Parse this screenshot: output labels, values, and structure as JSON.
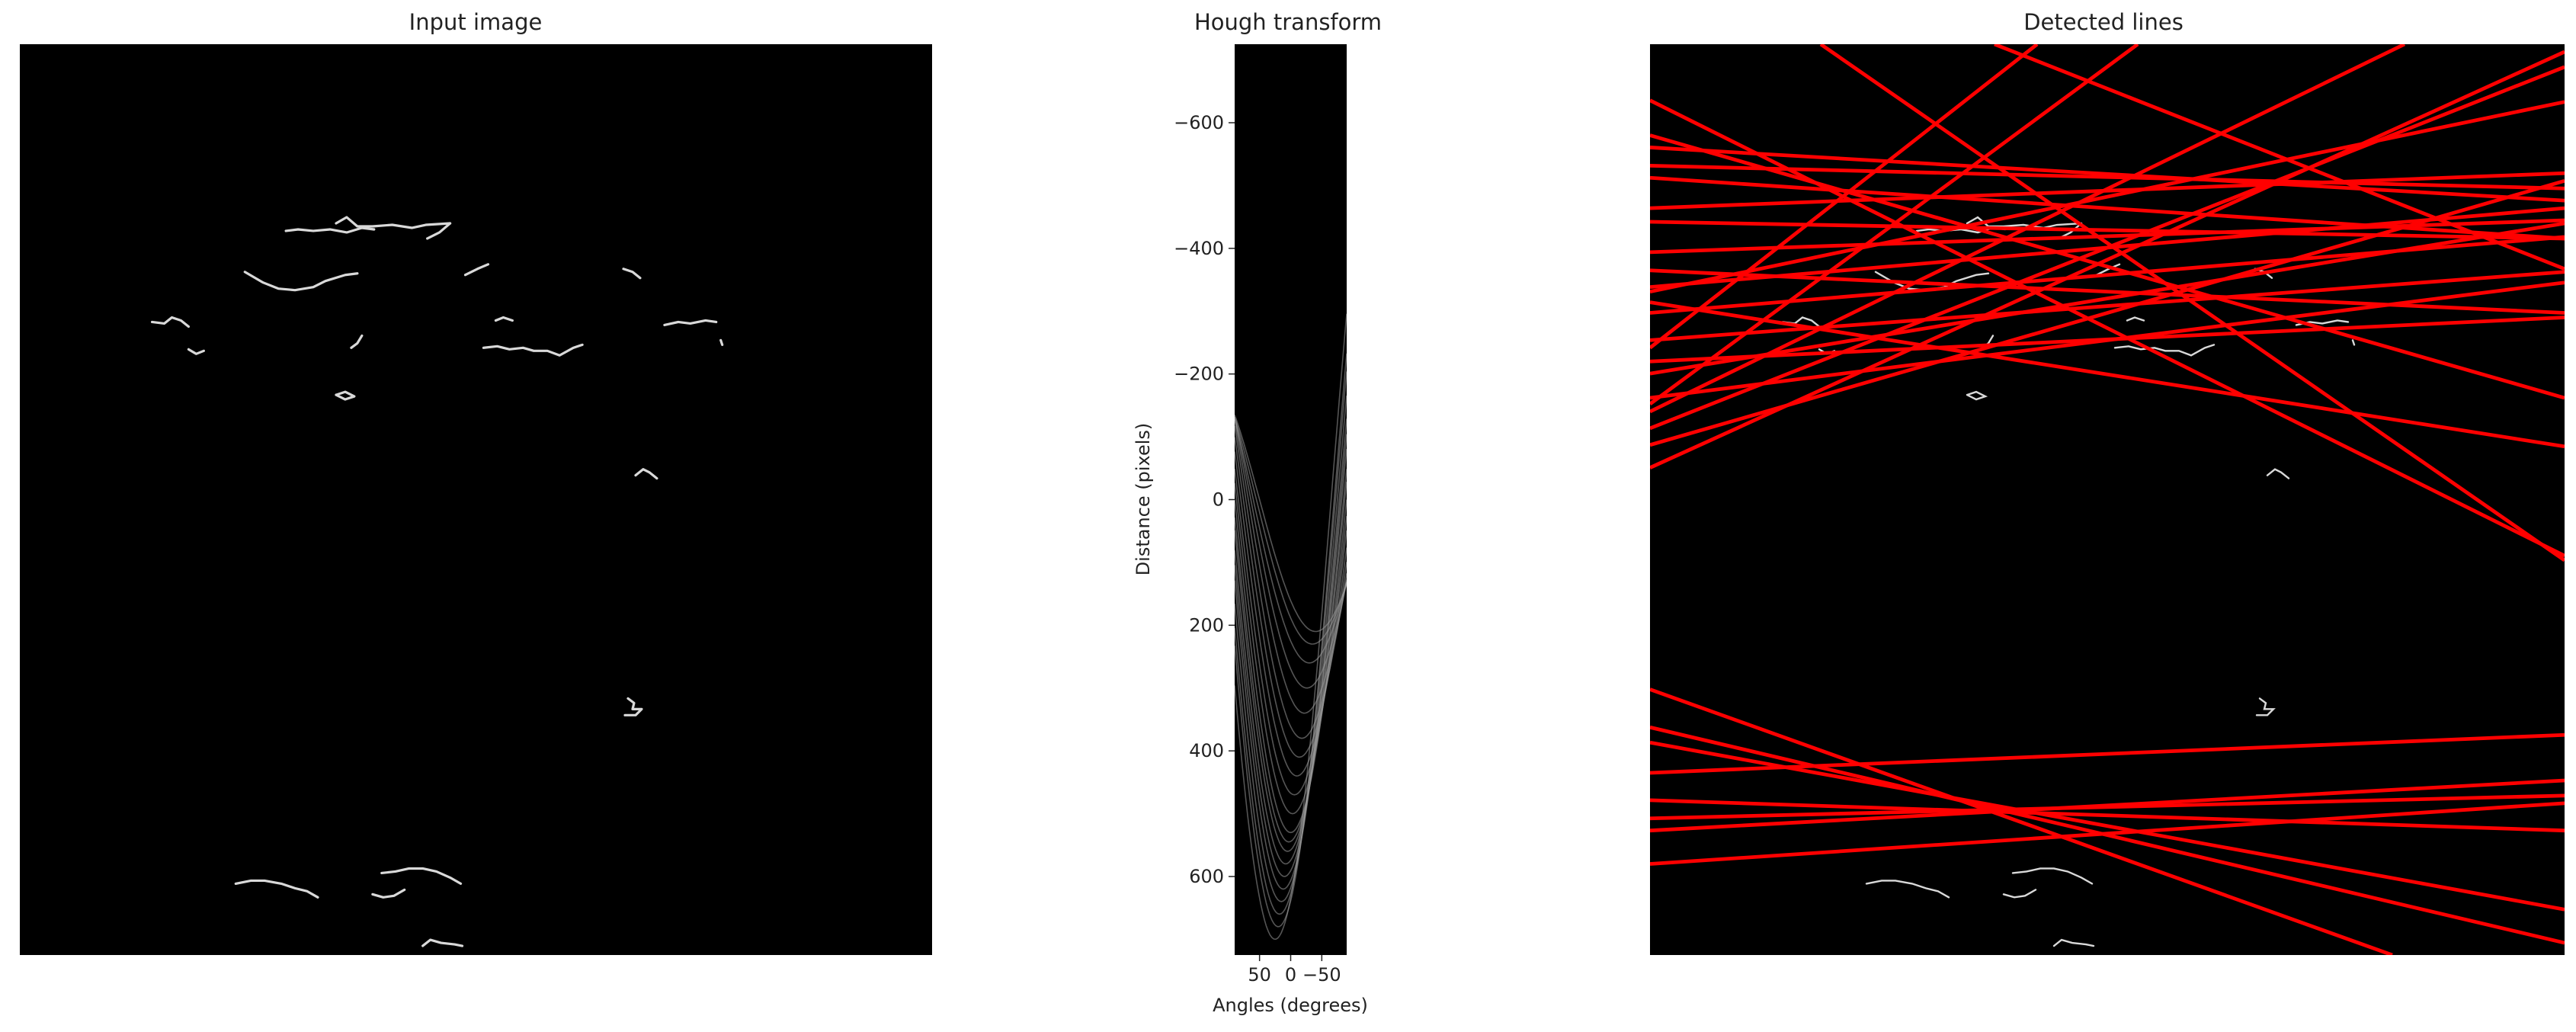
{
  "figure": {
    "panels": [
      {
        "title": "Input image"
      },
      {
        "title": "Hough transform"
      },
      {
        "title": "Detected lines"
      }
    ]
  },
  "chart_data": [
    {
      "type": "image",
      "title": "Input image",
      "description_colors": {
        "background": "#000000",
        "edges": "#d9d9d9"
      },
      "edge_segments": [
        [
          [
            175,
            123
          ],
          [
            183,
            122
          ],
          [
            193,
            123
          ],
          [
            204,
            122
          ],
          [
            215,
            124
          ],
          [
            225,
            121
          ],
          [
            233,
            122
          ]
        ],
        [
          [
            208,
            118
          ],
          [
            215,
            114
          ],
          [
            222,
            120
          ],
          [
            232,
            120
          ],
          [
            245,
            119
          ],
          [
            258,
            121
          ],
          [
            267,
            119
          ],
          [
            283,
            118
          ]
        ],
        [
          [
            268,
            128
          ],
          [
            276,
            124
          ],
          [
            283,
            118
          ]
        ],
        [
          [
            148,
            150
          ],
          [
            160,
            157
          ],
          [
            170,
            161
          ],
          [
            181,
            162
          ],
          [
            193,
            160
          ],
          [
            201,
            156
          ],
          [
            214,
            152
          ],
          [
            222,
            151
          ]
        ],
        [
          [
            293,
            152
          ],
          [
            301,
            148
          ],
          [
            308,
            145
          ]
        ],
        [
          [
            397,
            148
          ],
          [
            403,
            150
          ],
          [
            408,
            154
          ]
        ],
        [
          [
            87,
            183
          ],
          [
            95,
            184
          ],
          [
            100,
            180
          ],
          [
            106,
            182
          ],
          [
            111,
            186
          ]
        ],
        [
          [
            111,
            201
          ],
          [
            116,
            204
          ],
          [
            121,
            202
          ]
        ],
        [
          [
            218,
            200
          ],
          [
            222,
            197
          ],
          [
            225,
            192
          ]
        ],
        [
          [
            313,
            182
          ],
          [
            318,
            180
          ],
          [
            324,
            182
          ]
        ],
        [
          [
            305,
            200
          ],
          [
            314,
            199
          ],
          [
            322,
            201
          ],
          [
            331,
            200
          ],
          [
            338,
            202
          ],
          [
            347,
            202
          ],
          [
            355,
            205
          ],
          [
            364,
            200
          ],
          [
            370,
            198
          ]
        ],
        [
          [
            424,
            185
          ],
          [
            433,
            183
          ],
          [
            441,
            184
          ],
          [
            451,
            182
          ],
          [
            458,
            183
          ]
        ],
        [
          [
            461,
            195
          ],
          [
            462,
            198
          ]
        ],
        [
          [
            208,
            231
          ],
          [
            214,
            229
          ],
          [
            220,
            232
          ],
          [
            214,
            234
          ],
          [
            208,
            231
          ]
        ],
        [
          [
            405,
            284
          ],
          [
            410,
            280
          ],
          [
            414,
            282
          ],
          [
            419,
            286
          ]
        ],
        [
          [
            400,
            431
          ],
          [
            404,
            434
          ],
          [
            403,
            438
          ],
          [
            409,
            438
          ],
          [
            405,
            442
          ],
          [
            398,
            442
          ]
        ],
        [
          [
            142,
            553
          ],
          [
            152,
            551
          ],
          [
            161,
            551
          ],
          [
            172,
            553
          ],
          [
            181,
            556
          ],
          [
            189,
            558
          ],
          [
            196,
            562
          ]
        ],
        [
          [
            238,
            546
          ],
          [
            247,
            545
          ],
          [
            256,
            543
          ],
          [
            265,
            543
          ],
          [
            274,
            545
          ],
          [
            283,
            549
          ],
          [
            290,
            553
          ]
        ],
        [
          [
            232,
            560
          ],
          [
            239,
            562
          ],
          [
            246,
            561
          ],
          [
            253,
            557
          ]
        ],
        [
          [
            265,
            594
          ],
          [
            270,
            590
          ],
          [
            277,
            592
          ],
          [
            286,
            593
          ],
          [
            291,
            594
          ]
        ]
      ]
    },
    {
      "type": "heatmap",
      "title": "Hough transform",
      "xlabel": "Angles (degrees)",
      "ylabel": "Distance (pixels)",
      "x_ticks": [
        50,
        0,
        -50
      ],
      "y_ticks": [
        -600,
        -400,
        -200,
        0,
        200,
        400,
        600
      ],
      "xlim": [
        90,
        -90
      ],
      "ylim": [
        -725,
        725
      ],
      "colormap": "gray",
      "curves": [
        {
          "amp": 700,
          "phase": -25
        },
        {
          "amp": 680,
          "phase": -20
        },
        {
          "amp": 660,
          "phase": -18
        },
        {
          "amp": 640,
          "phase": -15
        },
        {
          "amp": 620,
          "phase": -12
        },
        {
          "amp": 600,
          "phase": -10
        },
        {
          "amp": 580,
          "phase": -8
        },
        {
          "amp": 560,
          "phase": -5
        },
        {
          "amp": 545,
          "phase": -3
        },
        {
          "amp": 530,
          "phase": 0
        },
        {
          "amp": 500,
          "phase": 3
        },
        {
          "amp": 470,
          "phase": 6
        },
        {
          "amp": 440,
          "phase": 10
        },
        {
          "amp": 410,
          "phase": 14
        },
        {
          "amp": 380,
          "phase": 18
        },
        {
          "amp": 340,
          "phase": 22
        },
        {
          "amp": 300,
          "phase": 26
        },
        {
          "amp": 260,
          "phase": 30
        },
        {
          "amp": 230,
          "phase": 35
        },
        {
          "amp": 210,
          "phase": 40
        }
      ]
    },
    {
      "type": "image",
      "title": "Detected lines",
      "description_colors": {
        "background": "#000000",
        "lines": "#ff0000",
        "edges": "#d9d9d9"
      },
      "lines": [
        [
          [
            0,
            68
          ],
          [
            600,
            103
          ]
        ],
        [
          [
            0,
            80
          ],
          [
            600,
            95
          ]
        ],
        [
          [
            0,
            88
          ],
          [
            600,
            128
          ]
        ],
        [
          [
            0,
            108
          ],
          [
            600,
            85
          ]
        ],
        [
          [
            0,
            117
          ],
          [
            600,
            128
          ]
        ],
        [
          [
            0,
            137
          ],
          [
            600,
            116
          ]
        ],
        [
          [
            0,
            149
          ],
          [
            600,
            177
          ]
        ],
        [
          [
            0,
            160
          ],
          [
            600,
            108
          ]
        ],
        [
          [
            0,
            177
          ],
          [
            600,
            127
          ]
        ],
        [
          [
            0,
            195
          ],
          [
            600,
            150
          ]
        ],
        [
          [
            0,
            209
          ],
          [
            600,
            180
          ]
        ],
        [
          [
            0,
            233
          ],
          [
            600,
            157
          ]
        ],
        [
          [
            0,
            253
          ],
          [
            600,
            15
          ]
        ],
        [
          [
            0,
            264
          ],
          [
            600,
            90
          ]
        ],
        [
          [
            0,
            279
          ],
          [
            600,
            5
          ]
        ],
        [
          [
            0,
            60
          ],
          [
            600,
            233
          ]
        ],
        [
          [
            0,
            37
          ],
          [
            600,
            337
          ]
        ],
        [
          [
            112,
            0
          ],
          [
            600,
            340
          ]
        ],
        [
          [
            226,
            0
          ],
          [
            600,
            148
          ]
        ],
        [
          [
            0,
            200
          ],
          [
            254,
            0
          ]
        ],
        [
          [
            0,
            237
          ],
          [
            320,
            0
          ]
        ],
        [
          [
            0,
            242
          ],
          [
            495,
            0
          ]
        ],
        [
          [
            0,
            163
          ],
          [
            600,
            38
          ]
        ],
        [
          [
            0,
            170
          ],
          [
            600,
            265
          ]
        ],
        [
          [
            0,
            217
          ],
          [
            600,
            118
          ]
        ],
        [
          [
            0,
            425
          ],
          [
            487,
            600
          ]
        ],
        [
          [
            0,
            450
          ],
          [
            600,
            592
          ]
        ],
        [
          [
            0,
            480
          ],
          [
            600,
            455
          ]
        ],
        [
          [
            0,
            498
          ],
          [
            600,
            518
          ]
        ],
        [
          [
            0,
            510
          ],
          [
            600,
            495
          ]
        ],
        [
          [
            0,
            518
          ],
          [
            600,
            485
          ]
        ],
        [
          [
            0,
            540
          ],
          [
            600,
            500
          ]
        ],
        [
          [
            0,
            460
          ],
          [
            600,
            570
          ]
        ]
      ]
    }
  ]
}
